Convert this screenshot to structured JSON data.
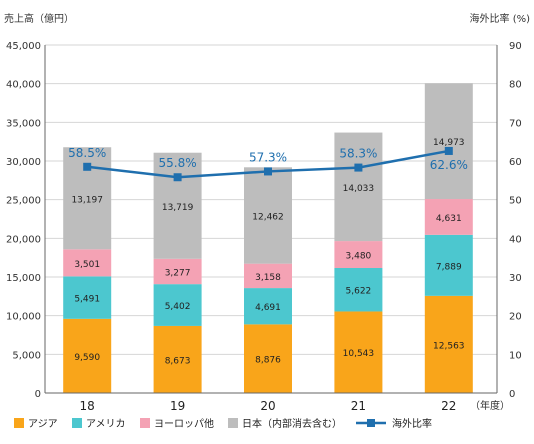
{
  "chart_data": {
    "type": "bar",
    "stacked": true,
    "categories": [
      "18",
      "19",
      "20",
      "21",
      "22"
    ],
    "x_unit": "（年度）",
    "y_left_label": "売上高（億円）",
    "y_left_range": [
      0,
      45000
    ],
    "y_left_ticks": [
      "0",
      "5,000",
      "10,000",
      "15,000",
      "20,000",
      "25,000",
      "30,000",
      "35,000",
      "40,000",
      "45,000"
    ],
    "y_right_label": "海外比率 (%)",
    "y_right_range": [
      0,
      90
    ],
    "y_right_ticks": [
      "0",
      "10",
      "20",
      "30",
      "40",
      "50",
      "60",
      "70",
      "80",
      "90"
    ],
    "series": [
      {
        "name": "アジア",
        "color": "#f9a51a",
        "values": [
          9590,
          8673,
          8876,
          10543,
          12563
        ],
        "labels": [
          "9,590",
          "8,673",
          "8,876",
          "10,543",
          "12,563"
        ]
      },
      {
        "name": "アメリカ",
        "color": "#4cc7cf",
        "values": [
          5491,
          5402,
          4691,
          5622,
          7889
        ],
        "labels": [
          "5,491",
          "5,402",
          "4,691",
          "5,622",
          "7,889"
        ]
      },
      {
        "name": "ヨーロッパ他",
        "color": "#f4a2b4",
        "values": [
          3501,
          3277,
          3158,
          3480,
          4631
        ],
        "labels": [
          "3,501",
          "3,277",
          "3,158",
          "3,480",
          "4,631"
        ]
      },
      {
        "name": "日本（内部消去含む）",
        "color": "#bdbdbd",
        "values": [
          13197,
          13719,
          12462,
          14033,
          14973
        ],
        "labels": [
          "13,197",
          "13,719",
          "12,462",
          "14,033",
          "14,973"
        ]
      }
    ],
    "line_series": {
      "name": "海外比率",
      "color": "#1f6fae",
      "values": [
        58.5,
        55.8,
        57.3,
        58.3,
        62.6
      ],
      "labels": [
        "58.5%",
        "55.8%",
        "57.3%",
        "58.3%",
        "62.6%"
      ]
    }
  }
}
